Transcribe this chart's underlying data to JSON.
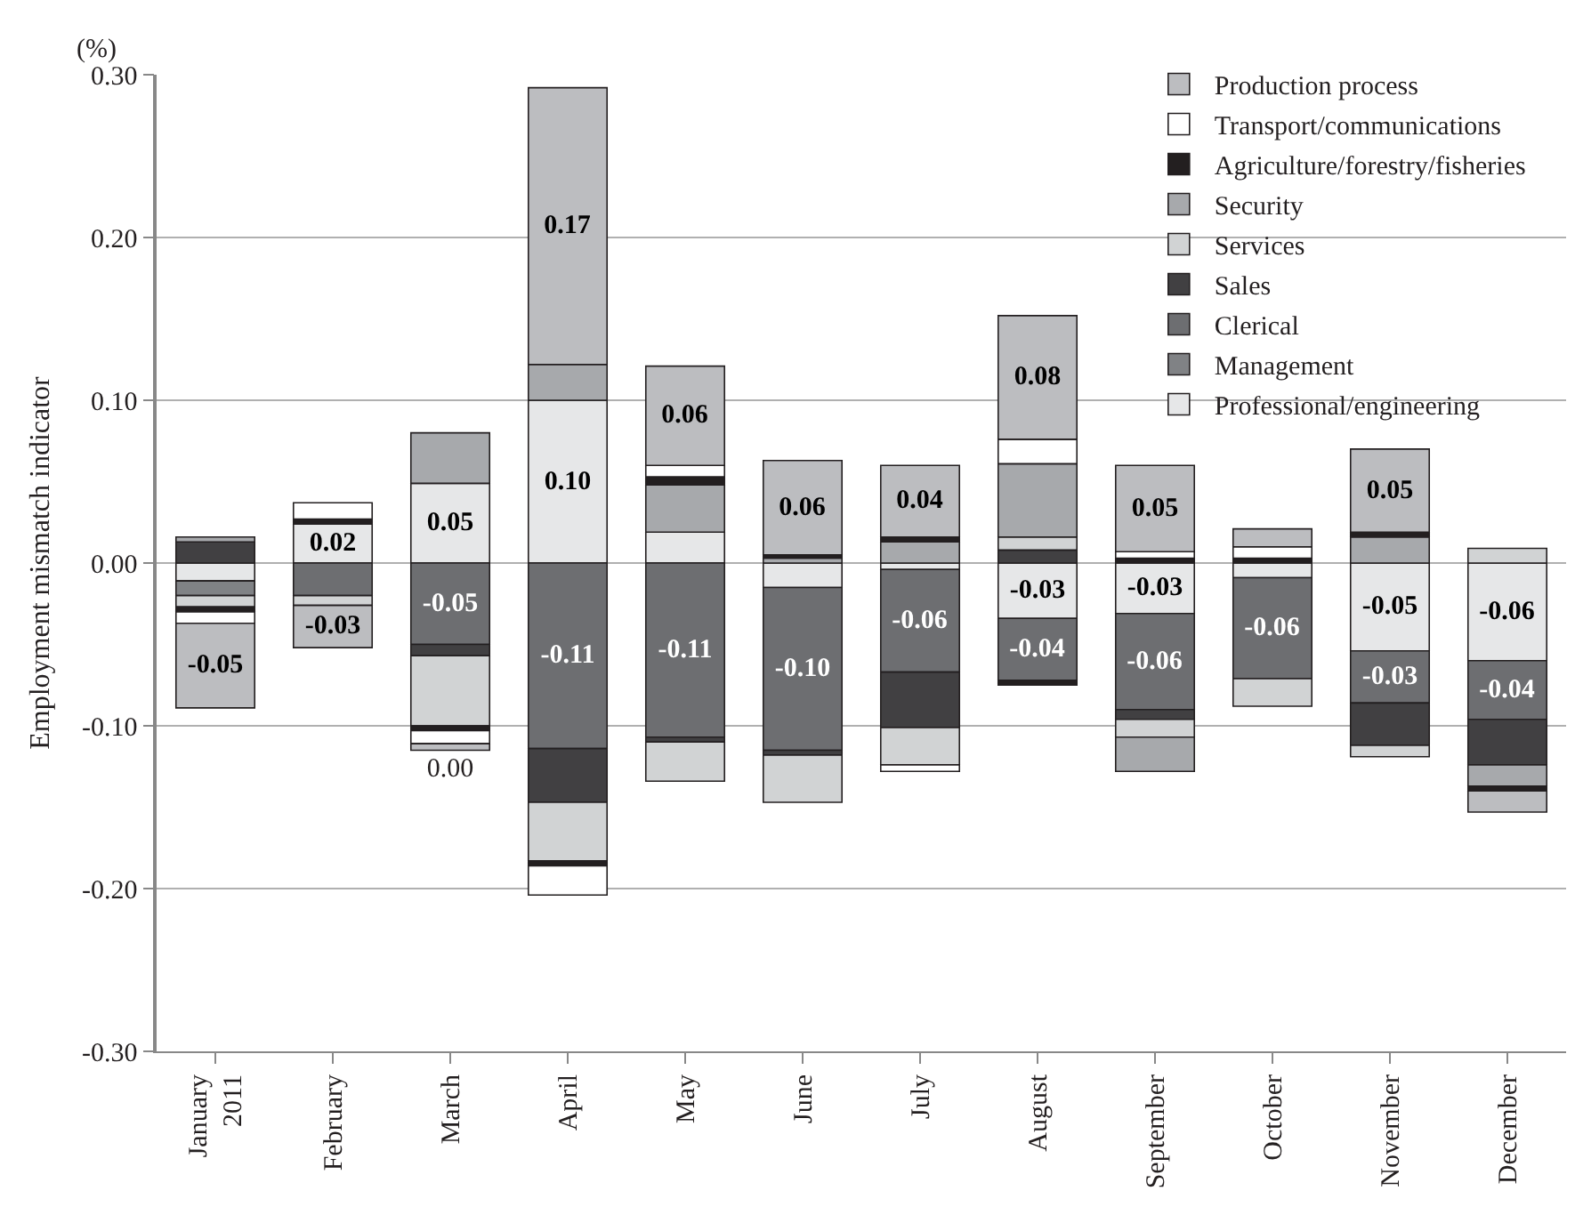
{
  "chart_data": {
    "type": "bar",
    "stacked": true,
    "ylabel": "Employment mismatch indicator",
    "annotations": [
      "(%)"
    ],
    "categories": [
      "January\n2011",
      "February",
      "March",
      "April",
      "May",
      "June",
      "July",
      "August",
      "September",
      "October",
      "November",
      "December"
    ],
    "series": [
      {
        "name": "Professional/engineering",
        "color": "#e6e7e8",
        "values": [
          -0.011,
          0.024,
          0.049,
          0.1,
          0.019,
          -0.015,
          -0.004,
          -0.034,
          -0.031,
          -0.009,
          -0.054,
          -0.06
        ],
        "value_labels": [
          null,
          "0.02",
          "0.05",
          "0.10",
          null,
          null,
          null,
          "-0.03",
          "-0.03",
          null,
          "-0.05",
          "-0.06"
        ]
      },
      {
        "name": "Management",
        "color": "#808285",
        "values": [
          -0.009,
          null,
          null,
          null,
          null,
          null,
          null,
          null,
          null,
          null,
          null,
          null
        ]
      },
      {
        "name": "Clerical",
        "color": "#6d6e71",
        "values": [
          null,
          -0.02,
          -0.05,
          -0.114,
          -0.107,
          -0.1,
          -0.063,
          -0.038,
          -0.059,
          -0.062,
          -0.032,
          -0.036
        ],
        "value_labels": [
          null,
          null,
          "-0.05",
          "-0.11",
          "-0.11",
          "-0.10",
          "-0.06",
          "-0.04",
          "-0.06",
          "-0.06",
          "-0.03",
          "-0.04"
        ]
      },
      {
        "name": "Sales",
        "color": "#414042",
        "values": [
          0.013,
          null,
          -0.007,
          -0.033,
          -0.003,
          -0.003,
          -0.034,
          0.008,
          -0.006,
          null,
          -0.026,
          -0.028
        ]
      },
      {
        "name": "Services",
        "color": "#d1d3d4",
        "values": [
          -0.007,
          -0.006,
          -0.043,
          -0.036,
          -0.024,
          -0.029,
          -0.023,
          0.008,
          -0.011,
          -0.017,
          -0.007,
          0.009
        ]
      },
      {
        "name": "Security",
        "color": "#a7a9ac",
        "values": [
          0.003,
          null,
          0.031,
          0.022,
          0.029,
          0.003,
          0.013,
          0.045,
          -0.021,
          null,
          0.016,
          -0.013
        ]
      },
      {
        "name": "Agriculture/forestry/fisheries",
        "color": "#231f20",
        "values": [
          -0.003,
          0.003,
          -0.003,
          -0.003,
          0.005,
          0.002,
          0.003,
          -0.003,
          0.003,
          0.003,
          0.003,
          -0.003
        ]
      },
      {
        "name": "Transport/communications",
        "color": "#ffffff",
        "values": [
          -0.007,
          0.01,
          -0.008,
          -0.018,
          0.007,
          null,
          -0.004,
          0.015,
          0.004,
          0.007,
          null,
          null
        ]
      },
      {
        "name": "Production process",
        "color": "#bcbdc0",
        "values": [
          -0.052,
          -0.026,
          -0.004,
          0.17,
          0.061,
          0.058,
          0.044,
          0.076,
          0.053,
          0.011,
          0.051,
          -0.013
        ],
        "value_labels": [
          "-0.05",
          "-0.03",
          "0.00",
          "0.17",
          "0.06",
          "0.06",
          "0.04",
          "0.08",
          "0.05",
          null,
          "0.05",
          null
        ]
      }
    ],
    "ylim": [
      -0.3,
      0.3
    ],
    "yticks": [
      {
        "value": -0.3,
        "label": "-0.30"
      },
      {
        "value": -0.2,
        "label": "-0.20"
      },
      {
        "value": -0.1,
        "label": "-0.10"
      },
      {
        "value": 0,
        "label": "0.00"
      },
      {
        "value": 0.1,
        "label": "0.10"
      },
      {
        "value": 0.2,
        "label": "0.20"
      },
      {
        "value": 0.3,
        "label": "0.30"
      }
    ],
    "grid": "y",
    "legend": "top right"
  }
}
